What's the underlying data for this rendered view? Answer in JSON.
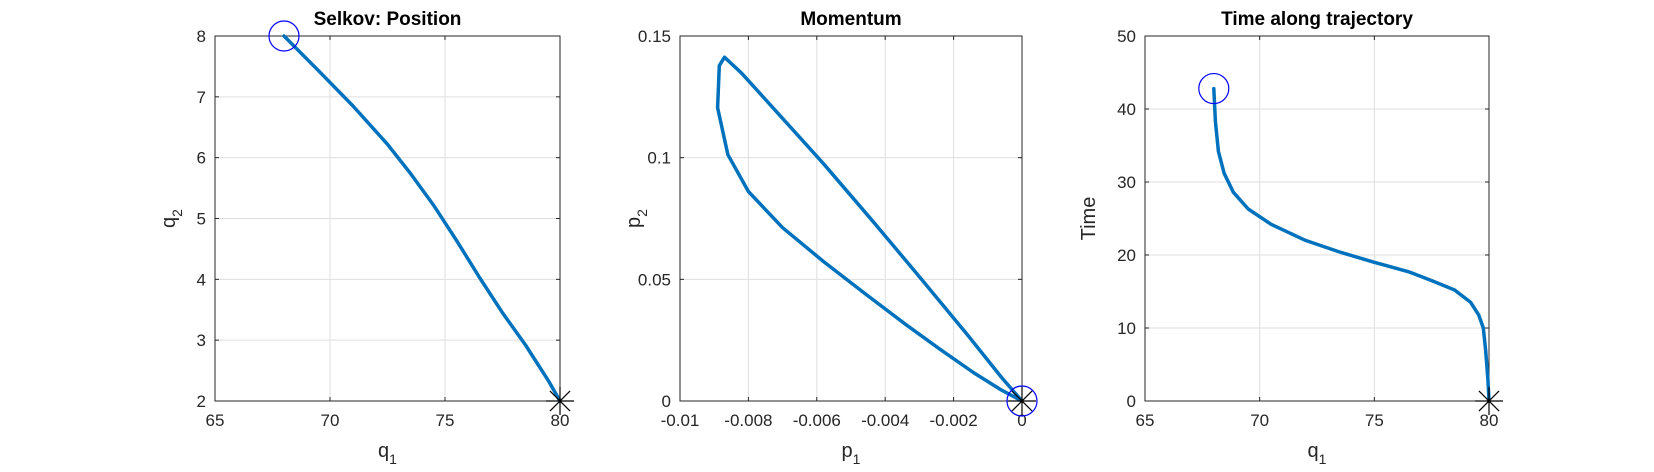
{
  "figure": {
    "background": "#ffffff",
    "line_color": "#0072BD",
    "start_marker_color": "#0000FF",
    "end_marker_color": "#000000",
    "grid_color": "#DFDFDF"
  },
  "chart_data": [
    {
      "type": "line",
      "title": "Selkov: Position",
      "xlabel": "q",
      "xlabel_sub": "1",
      "ylabel": "q",
      "ylabel_sub": "2",
      "xlim": [
        65,
        80
      ],
      "ylim": [
        2,
        8
      ],
      "xticks": [
        65,
        70,
        75,
        80
      ],
      "yticks": [
        2,
        3,
        4,
        5,
        6,
        7,
        8
      ],
      "xtick_labels": [
        "65",
        "70",
        "75",
        "80"
      ],
      "ytick_labels": [
        "2",
        "3",
        "4",
        "5",
        "6",
        "7",
        "8"
      ],
      "grid": true,
      "series": [
        {
          "x": [
            68.0,
            69.5,
            71.0,
            72.5,
            73.5,
            74.5,
            75.5,
            76.5,
            77.5,
            78.5,
            79.5,
            80.0
          ],
          "y": [
            8.0,
            7.43,
            6.85,
            6.22,
            5.74,
            5.22,
            4.64,
            4.03,
            3.45,
            2.92,
            2.33,
            2.0
          ]
        }
      ],
      "start_marker": {
        "x": 68.0,
        "y": 8.0,
        "shape": "circle"
      },
      "end_marker": {
        "x": 80.0,
        "y": 2.0,
        "shape": "asterisk"
      }
    },
    {
      "type": "line",
      "title": "Momentum",
      "xlabel": "p",
      "xlabel_sub": "1",
      "ylabel": "p",
      "ylabel_sub": "2",
      "xlim": [
        -0.01,
        0
      ],
      "ylim": [
        0,
        0.15
      ],
      "xticks": [
        -0.01,
        -0.008,
        -0.006,
        -0.004,
        -0.002,
        0
      ],
      "yticks": [
        0,
        0.05,
        0.1,
        0.15
      ],
      "xtick_labels": [
        "-0.01",
        "-0.008",
        "-0.006",
        "-0.004",
        "-0.002",
        "0"
      ],
      "ytick_labels": [
        "0",
        "0.05",
        "0.1",
        "0.15"
      ],
      "grid": true,
      "series": [
        {
          "x": [
            0.0,
            -0.0006,
            -0.0014,
            -0.0024,
            -0.0034,
            -0.0046,
            -0.0058,
            -0.007,
            -0.008,
            -0.0086,
            -0.0089,
            -0.00885,
            -0.0087,
            -0.0082,
            -0.0072,
            -0.0058,
            -0.0044,
            -0.003,
            -0.0016,
            -0.0006,
            0.0
          ],
          "y": [
            0.0,
            0.0045,
            0.0115,
            0.0213,
            0.0315,
            0.0442,
            0.0573,
            0.0712,
            0.0861,
            0.1012,
            0.1205,
            0.1378,
            0.1413,
            0.1347,
            0.1192,
            0.0975,
            0.0745,
            0.0511,
            0.0273,
            0.0097,
            0.0
          ]
        }
      ],
      "start_marker": {
        "x": 0.0,
        "y": 0.0,
        "shape": "circle"
      },
      "end_marker": {
        "x": 0.0,
        "y": 0.0,
        "shape": "asterisk"
      }
    },
    {
      "type": "line",
      "title": "Time along trajectory",
      "xlabel": "q",
      "xlabel_sub": "1",
      "ylabel": "Time",
      "ylabel_sub": "",
      "xlim": [
        65,
        80
      ],
      "ylim": [
        0,
        50
      ],
      "xticks": [
        65,
        70,
        75,
        80
      ],
      "yticks": [
        0,
        10,
        20,
        30,
        40,
        50
      ],
      "xtick_labels": [
        "65",
        "70",
        "75",
        "80"
      ],
      "ytick_labels": [
        "0",
        "10",
        "20",
        "30",
        "40",
        "50"
      ],
      "grid": true,
      "series": [
        {
          "x": [
            68.0,
            68.07,
            68.2,
            68.45,
            68.85,
            69.5,
            70.5,
            72.0,
            73.5,
            75.0,
            76.5,
            77.5,
            78.5,
            79.2,
            79.55,
            79.75,
            79.85,
            79.95,
            80.0
          ],
          "y": [
            42.8,
            38.3,
            34.2,
            31.2,
            28.6,
            26.3,
            24.2,
            22.0,
            20.4,
            19.0,
            17.7,
            16.5,
            15.2,
            13.5,
            11.8,
            10.0,
            7.0,
            3.0,
            0.0
          ]
        }
      ],
      "start_marker": {
        "x": 68.0,
        "y": 42.8,
        "shape": "circle"
      },
      "end_marker": {
        "x": 80.0,
        "y": 0.0,
        "shape": "asterisk"
      }
    }
  ]
}
